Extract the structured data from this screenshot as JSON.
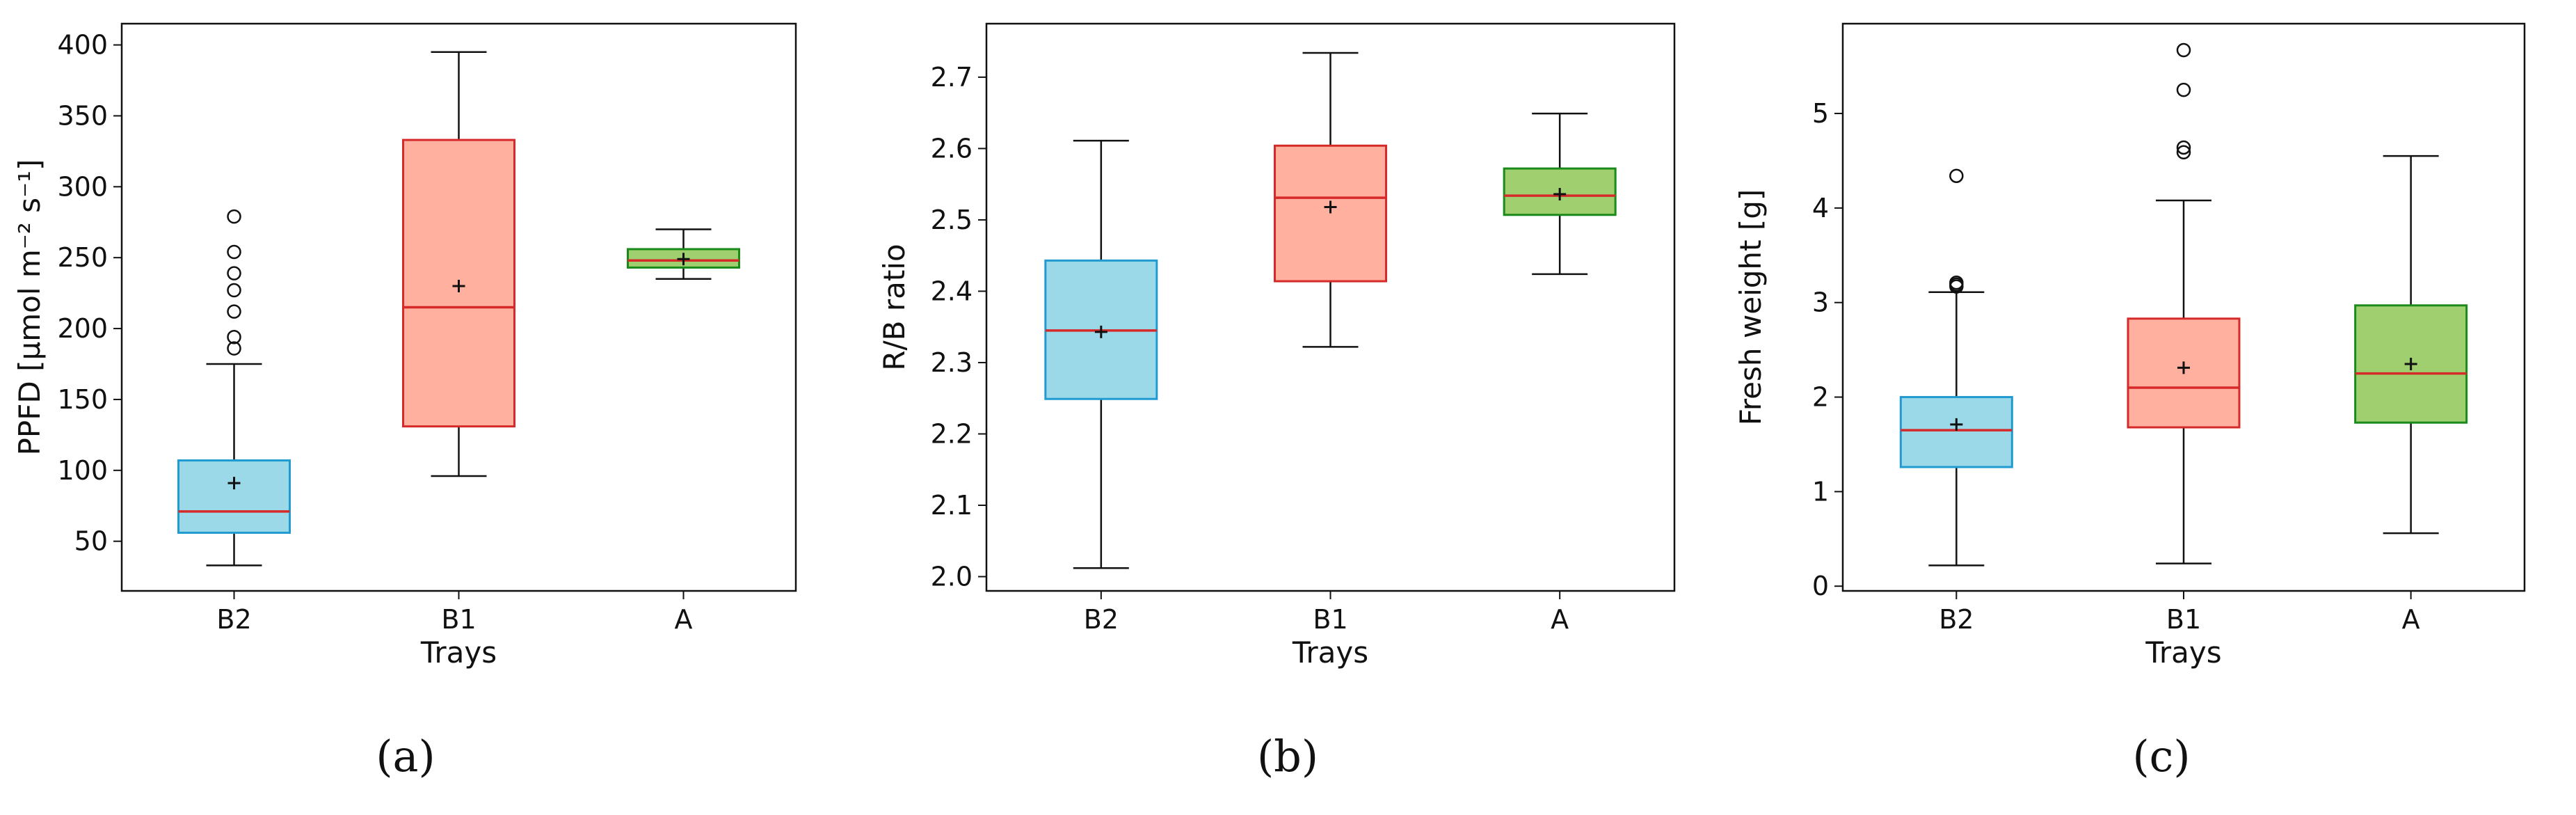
{
  "chart_data": [
    {
      "type": "box",
      "panel_label": "(a)",
      "xlabel": "Trays",
      "ylabel": "PPFD [μmol m⁻² s⁻¹]",
      "ylim": [
        15,
        415
      ],
      "yticks": [
        50,
        100,
        150,
        200,
        250,
        300,
        350,
        400
      ],
      "categories": [
        "B2",
        "B1",
        "A"
      ],
      "boxes": [
        {
          "category": "B2",
          "color": "#9bd8e8",
          "edge": "#1f9bd1",
          "whisker_low": 33,
          "q1": 56,
          "median": 71,
          "q3": 107,
          "whisker_high": 175,
          "mean": 91,
          "outliers": [
            186,
            194,
            212,
            227,
            239,
            254,
            279
          ]
        },
        {
          "category": "B1",
          "color": "#ffb09e",
          "edge": "#d62a2a",
          "whisker_low": 96,
          "q1": 131,
          "median": 215,
          "q3": 333,
          "whisker_high": 395,
          "mean": 230,
          "outliers": []
        },
        {
          "category": "A",
          "color": "#9fcf6e",
          "edge": "#1a8a1a",
          "whisker_low": 235,
          "q1": 243,
          "median": 248,
          "q3": 256,
          "whisker_high": 270,
          "mean": 249,
          "outliers": []
        }
      ]
    },
    {
      "type": "box",
      "panel_label": "(b)",
      "xlabel": "Trays",
      "ylabel": "R/B ratio",
      "ylim": [
        1.98,
        2.775
      ],
      "yticks": [
        2.0,
        2.1,
        2.2,
        2.3,
        2.4,
        2.5,
        2.6,
        2.7
      ],
      "categories": [
        "B2",
        "B1",
        "A"
      ],
      "boxes": [
        {
          "category": "B2",
          "color": "#9bd8e8",
          "edge": "#1f9bd1",
          "whisker_low": 2.012,
          "q1": 2.249,
          "median": 2.345,
          "q3": 2.443,
          "whisker_high": 2.611,
          "mean": 2.343,
          "outliers": []
        },
        {
          "category": "B1",
          "color": "#ffb09e",
          "edge": "#d62a2a",
          "whisker_low": 2.322,
          "q1": 2.414,
          "median": 2.531,
          "q3": 2.604,
          "whisker_high": 2.734,
          "mean": 2.518,
          "outliers": []
        },
        {
          "category": "A",
          "color": "#9fcf6e",
          "edge": "#1a8a1a",
          "whisker_low": 2.424,
          "q1": 2.507,
          "median": 2.534,
          "q3": 2.572,
          "whisker_high": 2.649,
          "mean": 2.536,
          "outliers": []
        }
      ]
    },
    {
      "type": "box",
      "panel_label": "(c)",
      "xlabel": "Trays",
      "ylabel": "Fresh weight [g]",
      "ylim": [
        -0.05,
        5.95
      ],
      "yticks": [
        0,
        1,
        2,
        3,
        4,
        5
      ],
      "categories": [
        "B2",
        "B1",
        "A"
      ],
      "boxes": [
        {
          "category": "B2",
          "color": "#9bd8e8",
          "edge": "#1f9bd1",
          "whisker_low": 0.22,
          "q1": 1.26,
          "median": 1.65,
          "q3": 2.0,
          "whisker_high": 3.11,
          "mean": 1.71,
          "outliers": [
            3.17,
            3.19,
            3.21,
            4.34
          ]
        },
        {
          "category": "B1",
          "color": "#ffb09e",
          "edge": "#d62a2a",
          "whisker_low": 0.24,
          "q1": 1.68,
          "median": 2.1,
          "q3": 2.83,
          "whisker_high": 4.08,
          "mean": 2.31,
          "outliers": [
            4.59,
            4.64,
            5.25,
            5.67
          ]
        },
        {
          "category": "A",
          "color": "#9fcf6e",
          "edge": "#1a8a1a",
          "whisker_low": 0.56,
          "q1": 1.73,
          "median": 2.25,
          "q3": 2.97,
          "whisker_high": 4.55,
          "mean": 2.35,
          "outliers": []
        }
      ]
    }
  ]
}
